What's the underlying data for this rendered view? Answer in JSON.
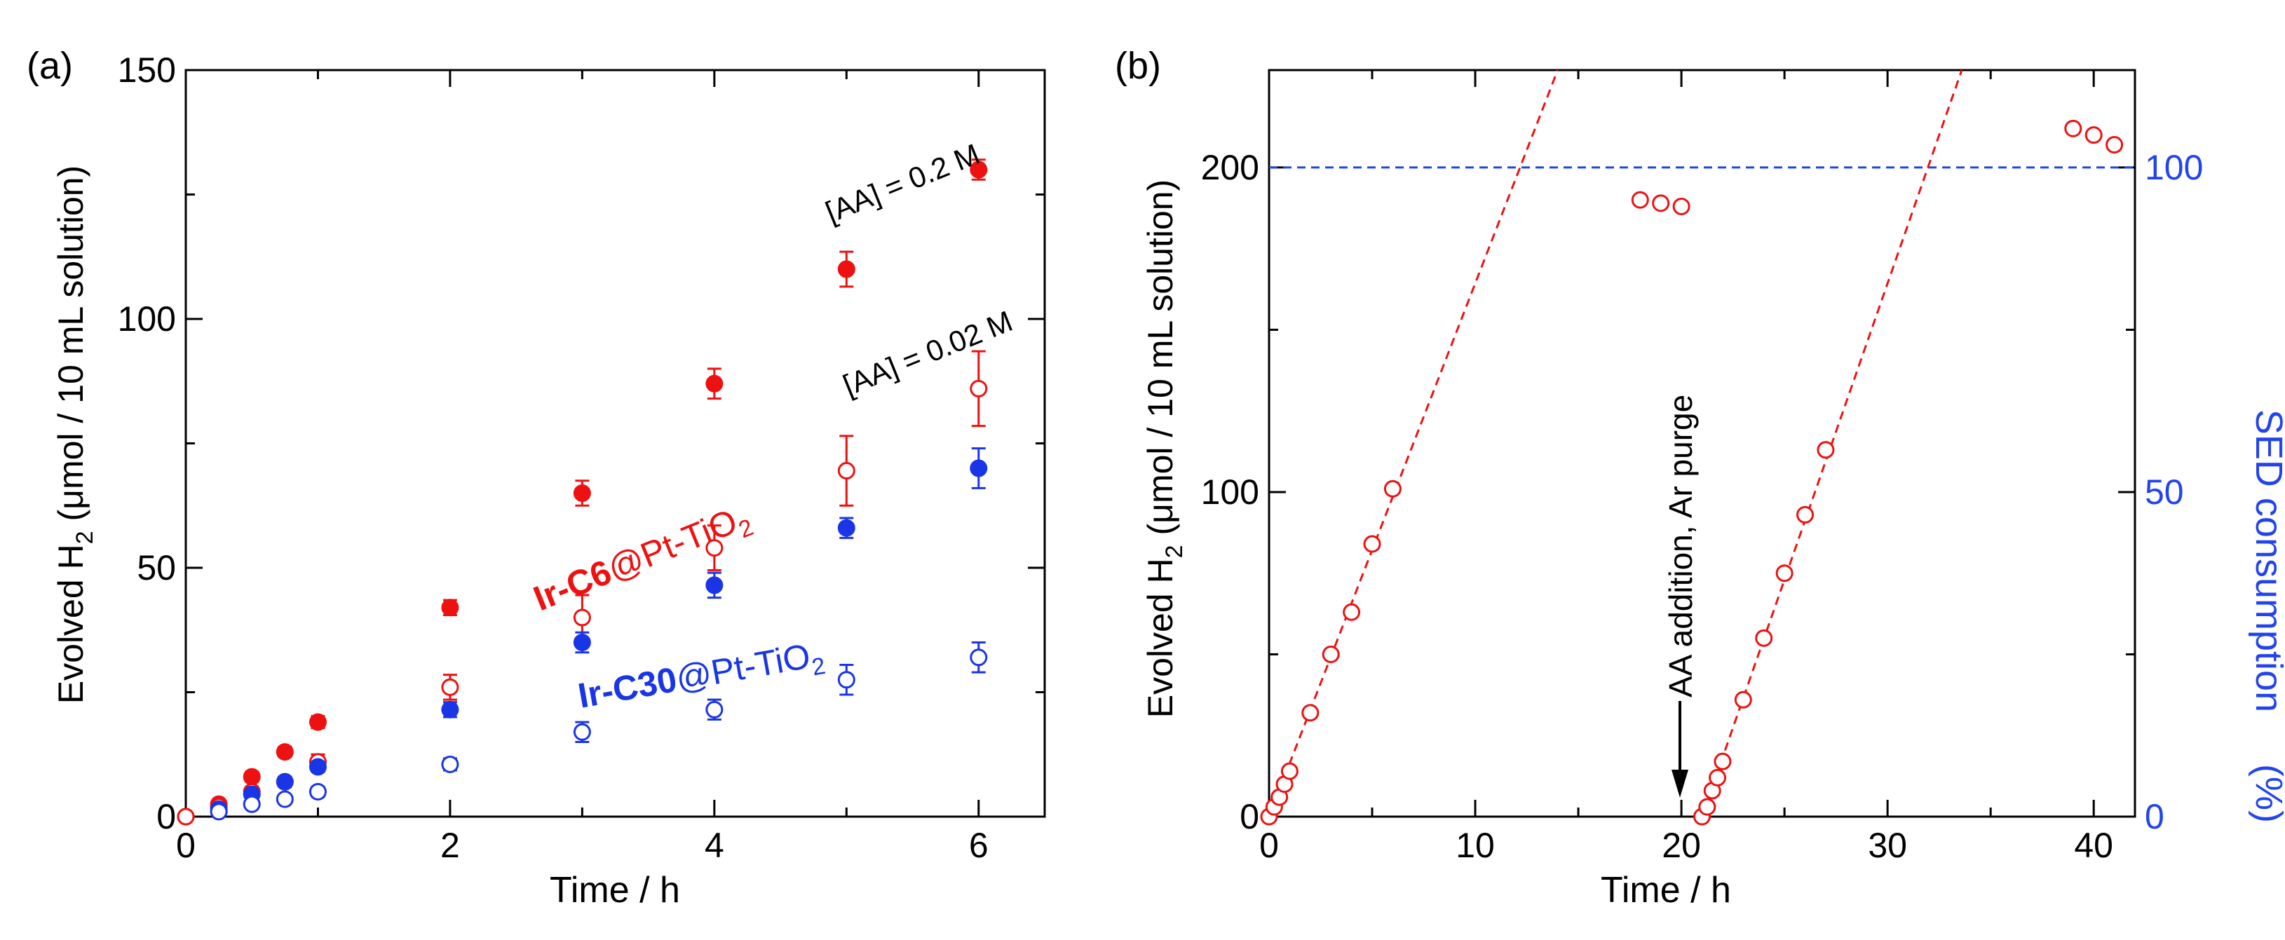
{
  "colors": {
    "red": "#ee1111",
    "blue": "#1a35e6",
    "axis": "#000000",
    "refline": "#2244ee"
  },
  "chart_data": [
    {
      "panel": "(a)",
      "type": "scatter",
      "xlabel": "Time / h",
      "ylabel": {
        "pre": "Evolved H",
        "sub": "2",
        "post": " (μmol / 10 mL solution)"
      },
      "xlim": [
        0,
        6.5
      ],
      "ylim": [
        0,
        150
      ],
      "xticks": [
        0,
        2,
        4,
        6
      ],
      "yticks": [
        0,
        50,
        100,
        150
      ],
      "series": [
        {
          "name": "Ir-C6@Pt-TiO2 [AA] = 0.2 M",
          "color": "red",
          "filled": true,
          "x": [
            0,
            0.25,
            0.5,
            0.75,
            1,
            2,
            3,
            4,
            5,
            6
          ],
          "y": [
            0,
            2.5,
            8,
            13,
            19,
            42,
            65,
            87,
            110,
            130
          ],
          "err": [
            0.5,
            0.8,
            1,
            1,
            1.2,
            1.5,
            2.5,
            3,
            3.5,
            2
          ]
        },
        {
          "name": "Ir-C6@Pt-TiO2 [AA] = 0.02 M",
          "color": "red",
          "filled": false,
          "x": [
            0,
            0.25,
            0.5,
            0.75,
            1,
            2,
            3,
            4,
            5,
            6
          ],
          "y": [
            0,
            2,
            5,
            7,
            11,
            26,
            40,
            54,
            69.5,
            86
          ],
          "err": [
            0.5,
            0.8,
            1,
            1,
            1.5,
            2.5,
            4.5,
            4.5,
            7,
            7.5
          ]
        },
        {
          "name": "Ir-C30@Pt-TiO2 [AA] = 0.2 M",
          "color": "blue",
          "filled": true,
          "x": [
            0.25,
            0.5,
            0.75,
            1,
            2,
            3,
            4,
            5,
            6
          ],
          "y": [
            1.5,
            4.5,
            7,
            10,
            21.5,
            35,
            46.5,
            58,
            70
          ],
          "err": [
            0.5,
            0.8,
            1,
            1,
            1.5,
            2,
            2.5,
            2,
            4
          ]
        },
        {
          "name": "Ir-C30@Pt-TiO2 [AA] = 0.02 M",
          "color": "blue",
          "filled": false,
          "x": [
            0.25,
            0.5,
            0.75,
            1,
            2,
            3,
            4,
            5,
            6
          ],
          "y": [
            1,
            2.5,
            3.5,
            5,
            10.5,
            17,
            21.5,
            27.5,
            32
          ],
          "err": [
            0.5,
            0.6,
            0.8,
            1,
            1.2,
            2,
            2,
            3,
            3
          ]
        }
      ],
      "annotations": {
        "aa_high": "[AA] = 0.2 M",
        "aa_low": "[AA] = 0.02 M",
        "c6_bold": "Ir-C6",
        "c30_bold": "Ir-C30",
        "support": {
          "pre": "@Pt-TiO",
          "sub": "2"
        }
      }
    },
    {
      "panel": "(b)",
      "type": "scatter",
      "xlabel": "Time / h",
      "ylabel": {
        "pre": "Evolved H",
        "sub": "2",
        "post": " (μmol / 10 mL solution)"
      },
      "ylabel_right": "SED consumption",
      "ylabel_right_unit": "(%)",
      "xlim": [
        0,
        42
      ],
      "ylim": [
        0,
        230
      ],
      "ylim_right": [
        0,
        115
      ],
      "xticks": [
        0,
        10,
        20,
        30,
        40
      ],
      "yticks": [
        0,
        100,
        200
      ],
      "yticks_right": [
        0,
        50,
        100
      ],
      "points": {
        "x": [
          0,
          0.25,
          0.5,
          0.75,
          1,
          2,
          3,
          4,
          5,
          6,
          18,
          19,
          20,
          21,
          21.25,
          21.5,
          21.75,
          22,
          23,
          24,
          25,
          26,
          27,
          39,
          40,
          41
        ],
        "y": [
          0,
          3,
          6,
          10,
          14,
          32,
          50,
          63,
          84,
          101,
          190,
          189,
          188,
          0,
          3,
          8,
          12,
          17,
          36,
          55,
          75,
          93,
          113,
          212,
          210,
          207
        ]
      },
      "fit_lines": [
        {
          "x": [
            0,
            14
          ],
          "y": [
            0,
            230
          ]
        },
        {
          "x": [
            21,
            33.6
          ],
          "y": [
            0,
            230
          ]
        }
      ],
      "reference_line_y": 200,
      "arrow_annotation": {
        "label": "AA addition, Ar purge",
        "x": 20
      }
    }
  ]
}
